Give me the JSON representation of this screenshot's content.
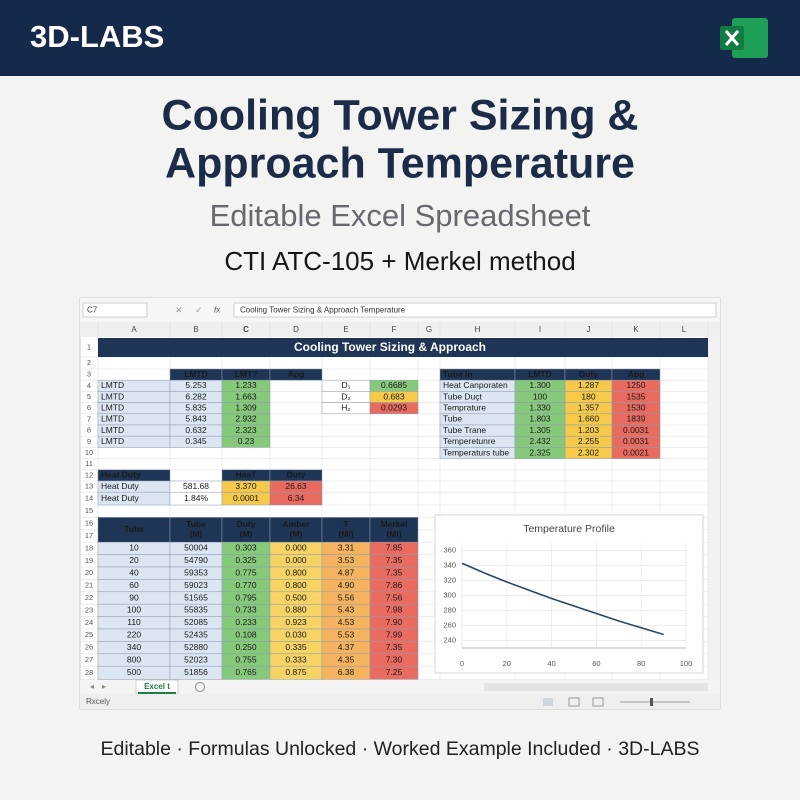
{
  "header": {
    "brand": "3D-LABS"
  },
  "hero": {
    "title_lines": [
      "Cooling Tower Sizing &",
      "Approach Temperature"
    ],
    "subtitle": "Editable Excel Spreadsheet",
    "method": "CTI ATC-105 + Merkel method"
  },
  "window": {
    "name_box": "C7",
    "fx": "fx",
    "formula": "Cooling Tower Sizing & Approach Temperature",
    "columns": [
      "A",
      "B",
      "C",
      "D",
      "E",
      "F",
      "G",
      "H",
      "I",
      "J",
      "K",
      "L"
    ],
    "rows": [
      1,
      2,
      3,
      4,
      5,
      6,
      7,
      8,
      9,
      10,
      11,
      12,
      13,
      14,
      15,
      16,
      17,
      18,
      19,
      20,
      21,
      22,
      23,
      24,
      25,
      26,
      27,
      28
    ],
    "sheet_title": "Cooling Tower Sizing & Approach",
    "sheet_tab": "Excel t",
    "status": "Rxcely"
  },
  "tables": [
    {
      "header": [
        null,
        "LMTD",
        "LMT?",
        "Apg"
      ],
      "fills": [
        "#dce6f2",
        "#dce6f2",
        "#86c97a",
        "#ffffff"
      ],
      "rows": [
        [
          "LMTD",
          "5.253",
          "1.233"
        ],
        [
          "LMTD",
          "6.282",
          "1.663"
        ],
        [
          "LMTD",
          "5.835",
          "1.309"
        ],
        [
          "LMTD",
          "5.843",
          "2.932"
        ],
        [
          "LMTD",
          "0.632",
          "2.323"
        ],
        [
          "LMTD",
          "0.345",
          "0.23"
        ]
      ]
    },
    {
      "fills": [
        "#ffffff",
        [
          "#86c97a",
          "#f5c94a",
          "#e96a5e"
        ]
      ],
      "rows": [
        [
          "D₁",
          "0.6685"
        ],
        [
          "D₂",
          "0.683"
        ],
        [
          "H₂",
          "0.0293"
        ]
      ]
    },
    {
      "header": [
        "Tube In",
        "LMTD",
        "Duty",
        "Apg"
      ],
      "fills": [
        "#dce6f2",
        "#86c97a",
        "#f5c94a",
        "#e96a5e"
      ],
      "rows": [
        [
          "Heat Canporaten",
          "1.300",
          "1.287",
          "1250"
        ],
        [
          "Tube Duçt",
          "100",
          "180",
          "1535"
        ],
        [
          "Temprature",
          "1.330",
          "1.357",
          "1530"
        ],
        [
          "Tube",
          "1.803",
          "1.660",
          "1839"
        ],
        [
          "Tube Trane",
          "1.305",
          "1.203",
          "0.0031"
        ],
        [
          "Temperetunre",
          "2.432",
          "2.255",
          "0.0031"
        ],
        [
          "Temperaturs tube",
          "2.325",
          "2.302",
          "0.0021"
        ]
      ]
    },
    {
      "header": [
        "Heat Duty",
        null,
        "HeaT",
        "Duty"
      ],
      "fills": [
        "#dce6f2",
        "#ffffff",
        "#f5c94a",
        "#e96a5e"
      ],
      "rows": [
        [
          "Heat Duty",
          "581.68",
          "3.370",
          "26.63"
        ],
        [
          "Heat Duty",
          "1.84%",
          "0.0001",
          "6.34"
        ]
      ]
    },
    {
      "header": [
        [
          "Tube"
        ],
        [
          "Tube",
          "(M)"
        ],
        [
          "Duty",
          "(M)"
        ],
        [
          "Amber",
          "(M)"
        ],
        [
          "T",
          "(M/)"
        ],
        [
          "Merkel",
          "(MI)"
        ]
      ],
      "fills": [
        "#dce6f2",
        "#dce6f2",
        "#86c97a",
        "#f6d365",
        "#f4b35e",
        "#ea6b5f"
      ],
      "rows": [
        [
          "10",
          "50004",
          "0.303",
          "0.000",
          "3.31",
          "7.85"
        ],
        [
          "20",
          "54790",
          "0.325",
          "0.000",
          "3.53",
          "7.35"
        ],
        [
          "40",
          "59353",
          "0.775",
          "0.800",
          "4.87",
          "7.35"
        ],
        [
          "60",
          "59023",
          "0.770",
          "0.800",
          "4.90",
          "7.86"
        ],
        [
          "90",
          "51565",
          "0.795",
          "0.500",
          "5.56",
          "7.56"
        ],
        [
          "100",
          "55835",
          "0.733",
          "0.880",
          "5.43",
          "7.98"
        ],
        [
          "110",
          "52085",
          "0.233",
          "0.923",
          "4.53",
          "7.90"
        ],
        [
          "220",
          "52435",
          "0.108",
          "0.030",
          "5.53",
          "7.99"
        ],
        [
          "340",
          "52880",
          "0.250",
          "0.335",
          "4.37",
          "7.35"
        ],
        [
          "800",
          "52023",
          "0.755",
          "0.333",
          "4.35",
          "7.30"
        ],
        [
          "500",
          "51856",
          "0.765",
          "0.875",
          "6.38",
          "7.25"
        ]
      ]
    }
  ],
  "chart_data": {
    "type": "line",
    "title": "Temperature Profile",
    "x": [
      0,
      10,
      20,
      30,
      40,
      50,
      60,
      70,
      80,
      90
    ],
    "values": [
      343,
      330,
      318,
      307,
      296,
      286,
      276,
      266,
      257,
      248
    ],
    "color": "#2c4668",
    "xlim": [
      0,
      100
    ],
    "xticks": [
      0,
      20,
      40,
      60,
      80,
      100
    ],
    "ylim": [
      230,
      370
    ],
    "yticks": [
      240,
      260,
      280,
      300,
      320,
      340,
      360
    ],
    "grid": true
  },
  "footer": "Editable · Formulas Unlocked · Worked Example Included · 3D-LABS"
}
